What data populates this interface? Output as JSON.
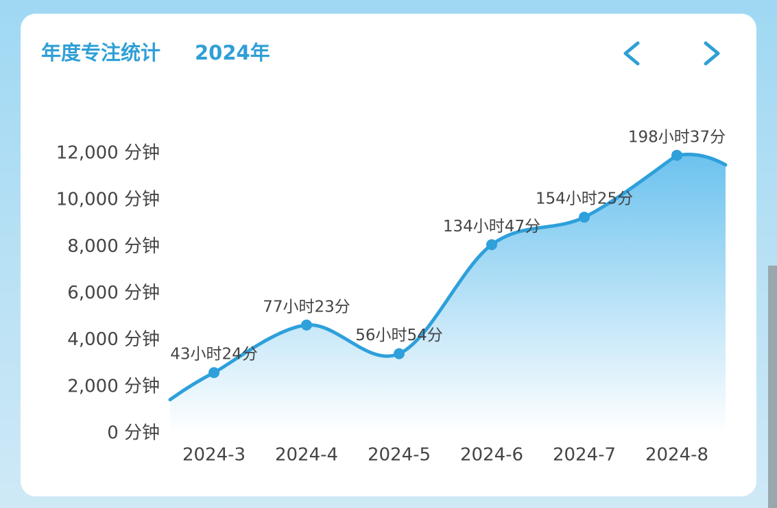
{
  "chart_data": {
    "type": "line",
    "title": "年度专注统计",
    "subtitle": "2024年",
    "categories": [
      "2024-3",
      "2024-4",
      "2024-5",
      "2024-6",
      "2024-7",
      "2024-8"
    ],
    "values": [
      2604,
      4643,
      3414,
      8087,
      9265,
      11917
    ],
    "value_labels": [
      "43小时24分",
      "77小时23分",
      "56小时54分",
      "134小时47分",
      "154小时25分",
      "198小时37分"
    ],
    "color": "#2ea0db",
    "ylim": [
      0,
      12000
    ],
    "yticks": [
      {
        "value": 0,
        "label": "0 分钟"
      },
      {
        "value": 2000,
        "label": "2,000 分钟"
      },
      {
        "value": 4000,
        "label": "4,000 分钟"
      },
      {
        "value": 6000,
        "label": "6,000 分钟"
      },
      {
        "value": 8000,
        "label": "8,000 分钟"
      },
      {
        "value": 10000,
        "label": "10,000 分钟"
      },
      {
        "value": 12000,
        "label": "12,000 分钟"
      }
    ],
    "grid": false
  }
}
